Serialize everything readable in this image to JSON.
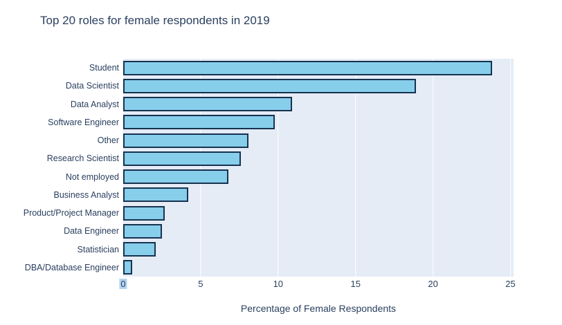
{
  "title": "Top 20 roles for female respondents in 2019",
  "chart_data": {
    "type": "bar",
    "orientation": "horizontal",
    "categories": [
      "Student",
      "Data Scientist",
      "Data Analyst",
      "Software Engineer",
      "Other",
      "Research Scientist",
      "Not employed",
      "Business Analyst",
      "Product/Project Manager",
      "Data Engineer",
      "Statistician",
      "DBA/Database Engineer"
    ],
    "values": [
      23.8,
      18.9,
      10.9,
      9.8,
      8.1,
      7.6,
      6.8,
      4.2,
      2.7,
      2.5,
      2.1,
      0.6
    ],
    "xlabel": "Percentage of Female Respondents",
    "ylabel": "",
    "xticks": [
      0,
      5,
      10,
      15,
      20,
      25
    ],
    "xlim": [
      0,
      25.2
    ],
    "grid": true,
    "legend": "none",
    "highlighted_tick": "0",
    "colors": {
      "bar_fill": "#87ceeb",
      "bar_border": "#16324f",
      "plot_bg": "#e5ecf6",
      "paper_bg": "#ffffff",
      "grid": "#ffffff",
      "text": "#2a3f5f",
      "tick_highlight": "#b3d4ef"
    }
  }
}
